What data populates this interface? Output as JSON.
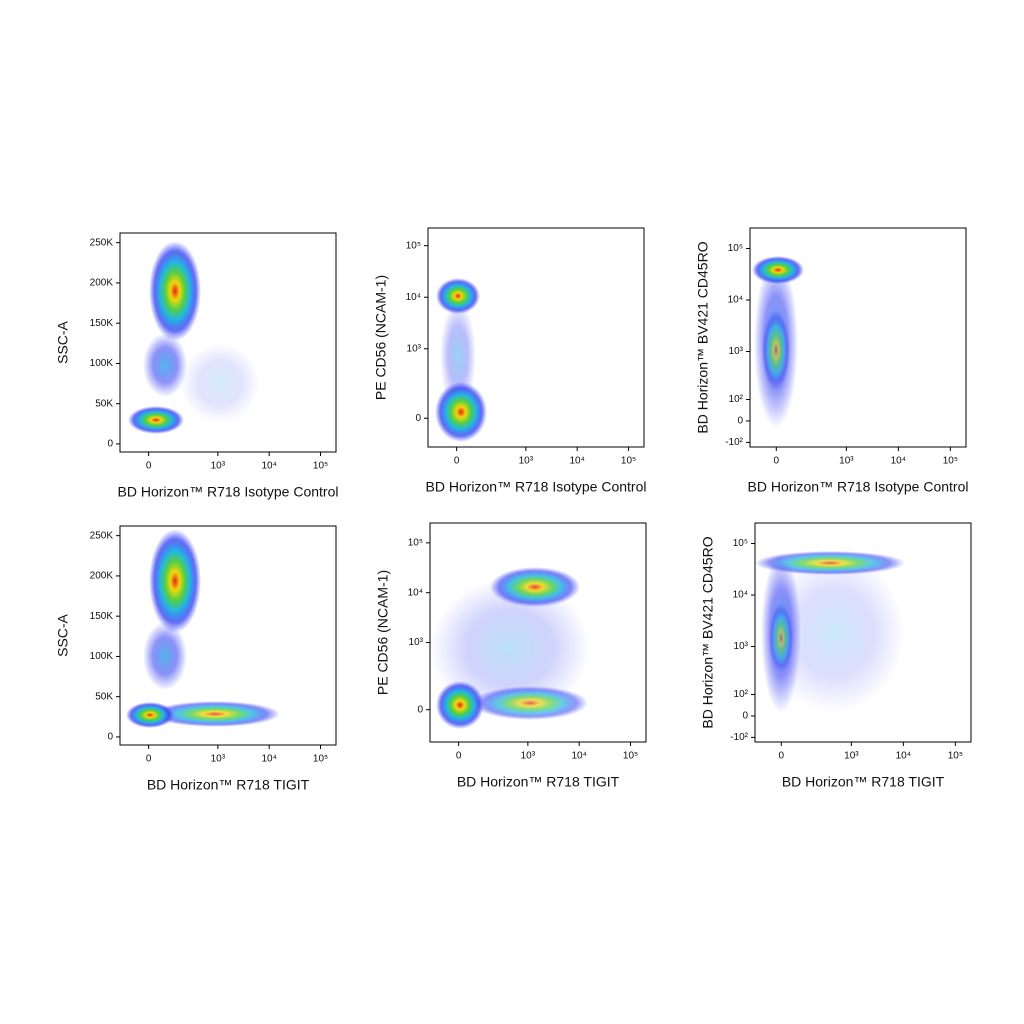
{
  "chart_data": [
    {
      "type": "scatter",
      "xlabel": "BD Horizon™ R718 Isotype Control",
      "ylabel": "SSC-A",
      "xscale": "biexponential",
      "yscale": "linear",
      "xlim": [
        -150,
        200000
      ],
      "xticks": [
        0,
        {
          "value": 1000,
          "label": "10³"
        },
        {
          "value": 10000,
          "label": "10⁴"
        },
        {
          "value": 100000,
          "label": "10⁵"
        }
      ],
      "ylim": [
        -10000,
        262000
      ],
      "yticks": [
        0,
        {
          "value": 50000,
          "label": "50K"
        },
        {
          "value": 100000,
          "label": "100K"
        },
        {
          "value": 150000,
          "label": "150K"
        },
        {
          "value": 200000,
          "label": "200K"
        },
        {
          "value": 250000,
          "label": "250K"
        }
      ]
    },
    {
      "type": "scatter",
      "xlabel": "BD Horizon™ R718 Isotype Control",
      "ylabel": "PE CD56 (NCAM-1)",
      "xscale": "biexponential",
      "yscale": "biexponential",
      "xlim": [
        -150,
        200000
      ],
      "xticks": [
        0,
        {
          "value": 1000,
          "label": "10³"
        },
        {
          "value": 10000,
          "label": "10⁴"
        },
        {
          "value": 100000,
          "label": "10⁵"
        }
      ],
      "ylim": [
        -150,
        220000
      ],
      "yticks": [
        0,
        {
          "value": 1000,
          "label": "10³"
        },
        {
          "value": 10000,
          "label": "10⁴"
        },
        {
          "value": 100000,
          "label": "10⁵"
        }
      ]
    },
    {
      "type": "scatter",
      "xlabel": "BD Horizon™ R718 Isotype Control",
      "ylabel": "BD Horizon™ BV421 CD45RO",
      "xscale": "biexponential",
      "yscale": "biexponential",
      "xlim": [
        -130,
        200000
      ],
      "xticks": [
        0,
        {
          "value": 1000,
          "label": "10³"
        },
        {
          "value": 10000,
          "label": "10⁴"
        },
        {
          "value": 100000,
          "label": "10⁵"
        }
      ],
      "ylim": [
        -130,
        250000
      ],
      "yticks": [
        {
          "value": -100,
          "label": "-10²"
        },
        0,
        {
          "value": 100,
          "label": "10²"
        },
        {
          "value": 1000,
          "label": "10³"
        },
        {
          "value": 10000,
          "label": "10⁴"
        },
        {
          "value": 100000,
          "label": "10⁵"
        }
      ]
    },
    {
      "type": "scatter",
      "xlabel": "BD Horizon™ R718 TIGIT",
      "ylabel": "SSC-A",
      "xscale": "biexponential",
      "yscale": "linear",
      "xlim": [
        -150,
        200000
      ],
      "xticks": [
        0,
        {
          "value": 1000,
          "label": "10³"
        },
        {
          "value": 10000,
          "label": "10⁴"
        },
        {
          "value": 100000,
          "label": "10⁵"
        }
      ],
      "ylim": [
        -10000,
        262000
      ],
      "yticks": [
        0,
        {
          "value": 50000,
          "label": "50K"
        },
        {
          "value": 100000,
          "label": "100K"
        },
        {
          "value": 150000,
          "label": "150K"
        },
        {
          "value": 200000,
          "label": "200K"
        },
        {
          "value": 250000,
          "label": "250K"
        }
      ]
    },
    {
      "type": "scatter",
      "xlabel": "BD Horizon™ R718 TIGIT",
      "ylabel": "PE CD56 (NCAM-1)",
      "xscale": "biexponential",
      "yscale": "biexponential",
      "xlim": [
        -150,
        200000
      ],
      "xticks": [
        0,
        {
          "value": 1000,
          "label": "10³"
        },
        {
          "value": 10000,
          "label": "10⁴"
        },
        {
          "value": 100000,
          "label": "10⁵"
        }
      ],
      "ylim": [
        -190,
        250000
      ],
      "yticks": [
        0,
        {
          "value": 1000,
          "label": "10³"
        },
        {
          "value": 10000,
          "label": "10⁴"
        },
        {
          "value": 100000,
          "label": "10⁵"
        }
      ]
    },
    {
      "type": "scatter",
      "xlabel": "BD Horizon™ R718 TIGIT",
      "ylabel": "BD Horizon™ BV421 CD45RO",
      "xscale": "biexponential",
      "yscale": "biexponential",
      "xlim": [
        -130,
        200000
      ],
      "xticks": [
        0,
        {
          "value": 1000,
          "label": "10³"
        },
        {
          "value": 10000,
          "label": "10⁴"
        },
        {
          "value": 100000,
          "label": "10⁵"
        }
      ],
      "ylim": [
        -130,
        250000
      ],
      "yticks": [
        {
          "value": -100,
          "label": "-10²"
        },
        0,
        {
          "value": 100,
          "label": "10²"
        },
        {
          "value": 1000,
          "label": "10³"
        },
        {
          "value": 10000,
          "label": "10⁴"
        },
        {
          "value": 100000,
          "label": "10⁵"
        }
      ]
    }
  ]
}
